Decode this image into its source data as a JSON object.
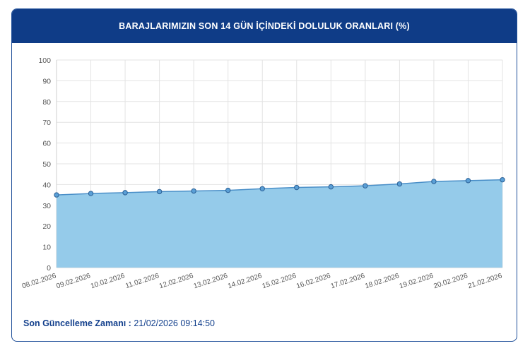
{
  "header": {
    "title": "BARAJLARIMIZIN SON 14 GÜN İÇİNDEKİ DOLULUK ORANLARI (%)"
  },
  "footer": {
    "label": "Son Güncelleme Zamanı :",
    "value": "21/02/2026 09:14:50"
  },
  "colors": {
    "header_bg": "#0f3c87",
    "area_fill": "#95cbea",
    "line": "#4a8fc8",
    "marker_fill": "#5a9fd6",
    "marker_stroke": "#2a5f95"
  },
  "chart_data": {
    "type": "area",
    "title": "BARAJLARIMIZIN SON 14 GÜN İÇİNDEKİ DOLULUK ORANLARI (%)",
    "categories": [
      "08.02.2026",
      "09.02.2026",
      "10.02.2026",
      "11.02.2026",
      "12.02.2026",
      "13.02.2026",
      "14.02.2026",
      "15.02.2026",
      "16.02.2026",
      "17.02.2026",
      "18.02.2026",
      "19.02.2026",
      "20.02.2026",
      "21.02.2026"
    ],
    "values": [
      35.0,
      35.7,
      36.1,
      36.6,
      36.9,
      37.2,
      38.0,
      38.6,
      38.9,
      39.4,
      40.3,
      41.5,
      41.9,
      42.3
    ],
    "xlabel": "",
    "ylabel": "",
    "ylim": [
      0,
      100
    ],
    "yticks": [
      0,
      10,
      20,
      30,
      40,
      50,
      60,
      70,
      80,
      90,
      100
    ],
    "grid": true,
    "legend": "none"
  }
}
